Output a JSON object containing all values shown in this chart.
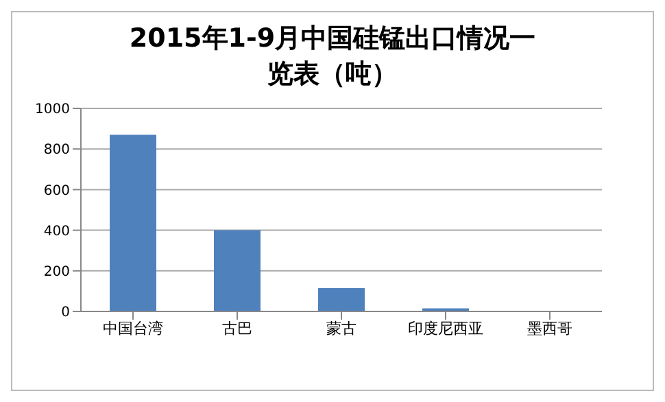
{
  "chart_data": {
    "type": "bar",
    "title": "2015年1-9月中国硅锰出口情况一览表（吨）",
    "categories": [
      "中国台湾",
      "古巴",
      "蒙古",
      "印度尼西亚",
      "墨西哥"
    ],
    "values": [
      870,
      400,
      115,
      15,
      2
    ],
    "color": "#4f81bd",
    "ylim": [
      0,
      1000
    ],
    "yticks": [
      0,
      200,
      400,
      600,
      800,
      1000
    ],
    "grid": "y"
  }
}
